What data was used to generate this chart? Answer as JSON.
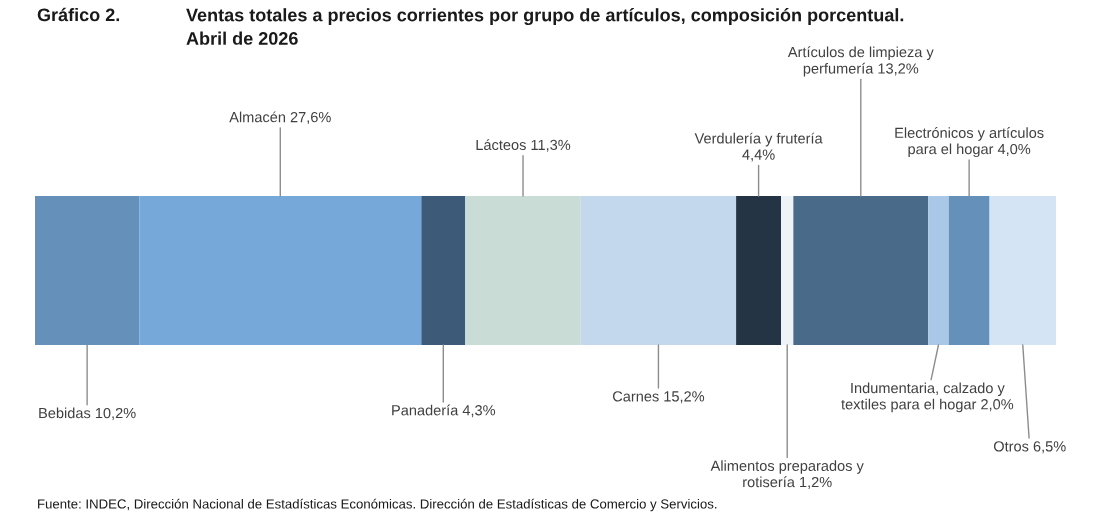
{
  "chart_data": {
    "type": "bar",
    "orientation": "horizontal",
    "stacked": true,
    "title": "Ventas totales a precios corrientes por grupo de artículos, composición porcentual.\nAbril de 2026",
    "annotations": [
      "Gráfico 2.",
      "Fuente: INDEC, Dirección Nacional de Estadísticas Económicas. Dirección de Estadísticas de Comercio y Servicios."
    ],
    "categories": [
      null
    ],
    "series": [
      {
        "name": "Bebidas",
        "color": "#6590b9",
        "values": [
          10.2
        ],
        "value_labels": [
          "10,2%"
        ]
      },
      {
        "name": "Almacén",
        "color": "#76a9d9",
        "values": [
          27.6
        ],
        "value_labels": [
          "27,6%"
        ]
      },
      {
        "name": "Panadería",
        "color": "#3d5a78",
        "values": [
          4.3
        ],
        "value_labels": [
          "4,3%"
        ]
      },
      {
        "name": "Lácteos",
        "color": "#cadcd6",
        "values": [
          11.3
        ],
        "value_labels": [
          "11,3%"
        ]
      },
      {
        "name": "Carnes",
        "color": "#c3d8ed",
        "values": [
          15.2
        ],
        "value_labels": [
          "15,2%"
        ]
      },
      {
        "name": "Verdulería y frutería\n",
        "color": "#253445",
        "values": [
          4.4
        ],
        "value_labels": [
          "4,4%"
        ]
      },
      {
        "name": "Alimentos preparados y\nrotisería",
        "color": "#eef3f8",
        "values": [
          1.2
        ],
        "value_labels": [
          "1,2%"
        ]
      },
      {
        "name": "Artículos de limpieza y\nperfumería",
        "color": "#4a6a8a",
        "values": [
          13.2
        ],
        "value_labels": [
          "13,2%"
        ]
      },
      {
        "name": "Indumentaria, calzado y\ntextiles para el hogar",
        "color": "#a9c8e8",
        "values": [
          2.0
        ],
        "value_labels": [
          "2,0%"
        ]
      },
      {
        "name": "Electrónicos y artículos\npara el hogar",
        "color": "#6590b9",
        "values": [
          4.0
        ],
        "value_labels": [
          "4,0%"
        ]
      },
      {
        "name": "Otros",
        "color": "#d4e4f4",
        "values": [
          6.5
        ],
        "value_labels": [
          "6,5%"
        ]
      }
    ],
    "legend": false
  }
}
